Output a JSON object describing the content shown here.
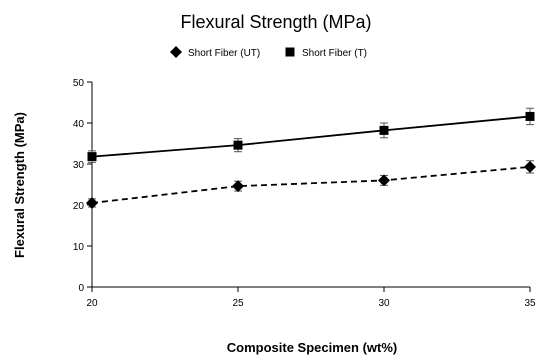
{
  "chart_data": {
    "type": "line",
    "title": "Flexural Strength (MPa)",
    "xlabel": "Composite Specimen (wt%)",
    "ylabel": "Flexural Strength (MPa)",
    "x": [
      20,
      25,
      30,
      35
    ],
    "xlim": [
      20,
      35
    ],
    "ylim": [
      0,
      50
    ],
    "yticks": [
      0,
      10,
      20,
      30,
      40,
      50
    ],
    "xticks": [
      20,
      25,
      30,
      35
    ],
    "grid": false,
    "legend_position": "top-center",
    "series": [
      {
        "name": "Short Fiber (UT)",
        "values": [
          20.5,
          24.6,
          26.0,
          29.3
        ],
        "error": [
          1.0,
          1.2,
          1.2,
          1.5
        ],
        "marker": "diamond",
        "line_style": "dashed",
        "color": "#000000"
      },
      {
        "name": "Short Fiber (T)",
        "values": [
          31.8,
          34.6,
          38.2,
          41.6
        ],
        "error": [
          1.4,
          1.6,
          1.8,
          2.0
        ],
        "marker": "square",
        "line_style": "solid",
        "color": "#000000"
      }
    ]
  }
}
